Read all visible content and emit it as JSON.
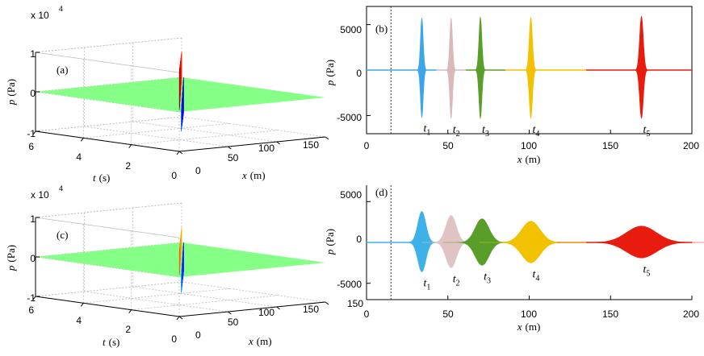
{
  "chart_data": [
    {
      "id": "a",
      "type": "surface3d",
      "panel_label": "(a)",
      "z_exponent": "x 10",
      "z_exponent_power": "4",
      "z_ticks": [
        "1",
        "0",
        "-1"
      ],
      "t_ticks": [
        "6",
        "4",
        "2",
        "0"
      ],
      "x_ticks": [
        "0",
        "50",
        "100",
        "150"
      ],
      "zlabel_italic": "p",
      "zlabel_unit": "(Pa)",
      "tlabel_italic": "t",
      "tlabel_unit": "(s)",
      "xlabel_italic": "x",
      "xlabel_unit": "(m)",
      "colormap": "jet",
      "ridge_peak": 1.0,
      "ridge_min": -0.9
    },
    {
      "id": "c",
      "type": "surface3d",
      "panel_label": "(c)",
      "z_exponent": "x 10",
      "z_exponent_power": "4",
      "z_ticks": [
        "1",
        "0",
        "-1"
      ],
      "t_ticks": [
        "6",
        "4",
        "2",
        "0"
      ],
      "x_ticks": [
        "0",
        "50",
        "100",
        "150"
      ],
      "zlabel_italic": "p",
      "zlabel_unit": "(Pa)",
      "tlabel_italic": "t",
      "tlabel_unit": "(s)",
      "xlabel_italic": "x",
      "xlabel_unit": "(m)",
      "colormap": "jet",
      "ridge_peak": 0.6,
      "ridge_min": -0.75
    },
    {
      "id": "b",
      "type": "line",
      "panel_label": "(b)",
      "xlim": [
        0,
        200
      ],
      "ylim": [
        -7000,
        7000
      ],
      "x_ticks": [
        "0",
        "50",
        "100",
        "150",
        "200"
      ],
      "y_ticks": [
        "5000",
        "0",
        "-5000"
      ],
      "xlabel_italic": "x",
      "xlabel_unit": "(m)",
      "ylabel_italic": "p",
      "ylabel_unit": "(Pa)",
      "source_line_x": 15,
      "series": [
        {
          "name": "t1",
          "sub": "1",
          "center": 34,
          "amplitude": 5700,
          "trough": -5200,
          "width": 1.2,
          "color": "#3da5e8"
        },
        {
          "name": "t2",
          "sub": "2",
          "center": 52,
          "amplitude": 5700,
          "trough": -5300,
          "width": 1.2,
          "color": "#d9b9b9"
        },
        {
          "name": "t3",
          "sub": "3",
          "center": 70,
          "amplitude": 5800,
          "trough": -5300,
          "width": 1.3,
          "color": "#5a9e2a"
        },
        {
          "name": "t4",
          "sub": "4",
          "center": 101,
          "amplitude": 5800,
          "trough": -5300,
          "width": 1.4,
          "color": "#f2c200"
        },
        {
          "name": "t5",
          "sub": "5",
          "center": 169,
          "amplitude": 5900,
          "trough": -5300,
          "width": 1.6,
          "color": "#e81b0f"
        }
      ]
    },
    {
      "id": "d",
      "type": "line",
      "panel_label": "(d)",
      "xlim": [
        0,
        200
      ],
      "ylim": [
        -7000,
        7000
      ],
      "x_ticks": [
        "0",
        "50",
        "100",
        "150",
        "200"
      ],
      "y_ticks": [
        "5000",
        "0",
        "-5000"
      ],
      "xlabel_italic": "x",
      "xlabel_unit": "(m)",
      "ylabel_italic": "p",
      "ylabel_unit": "(Pa)",
      "source_line_x": 15,
      "series": [
        {
          "name": "t1",
          "sub": "1",
          "center": 34,
          "amplitude": 3800,
          "trough": -3600,
          "width": 3.5,
          "color": "#3db2e8"
        },
        {
          "name": "t2",
          "sub": "2",
          "center": 52,
          "amplitude": 3300,
          "trough": -3100,
          "width": 4.5,
          "color": "#e0c3c3"
        },
        {
          "name": "t3",
          "sub": "3",
          "center": 71,
          "amplitude": 2900,
          "trough": -2800,
          "width": 6.0,
          "color": "#5a9e2a"
        },
        {
          "name": "t4",
          "sub": "4",
          "center": 101,
          "amplitude": 2600,
          "trough": -2500,
          "width": 8.0,
          "color": "#f2c200"
        },
        {
          "name": "t5",
          "sub": "5",
          "center": 169,
          "amplitude": 2000,
          "trough": -1900,
          "width": 13.0,
          "color": "#e81b0f"
        }
      ]
    }
  ]
}
